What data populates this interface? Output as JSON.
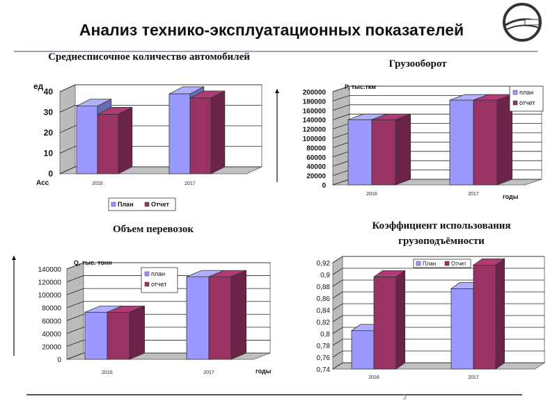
{
  "slide": {
    "title": "Анализ технико-эксплуатационных показателей",
    "page_number": "3"
  },
  "colors": {
    "plan": "#9999ff",
    "report": "#993366"
  },
  "chart_data": [
    {
      "type": "bar",
      "title": "Среднесписочное количество автомобилей",
      "ylabel": "ед",
      "xlabel": "",
      "corner_label": "Асс",
      "categories": [
        "2016",
        "2017"
      ],
      "ylim": [
        0,
        40
      ],
      "yticks": [
        "0",
        "10",
        "20",
        "30",
        "40"
      ],
      "series": [
        {
          "name": "План",
          "values": [
            33,
            39
          ]
        },
        {
          "name": "Отчет",
          "values": [
            29,
            37
          ]
        }
      ],
      "legend_position": "bottom"
    },
    {
      "type": "bar",
      "title": "Грузооборот",
      "ylabel": "Р, тыс.ткм",
      "xlabel": "годы",
      "categories": [
        "2016",
        "2017"
      ],
      "ylim": [
        0,
        200000
      ],
      "yticks": [
        "0",
        "20000",
        "40000",
        "60000",
        "80000",
        "100000",
        "120000",
        "140000",
        "160000",
        "180000",
        "200000"
      ],
      "series": [
        {
          "name": "план",
          "values": [
            140000,
            182000
          ]
        },
        {
          "name": "отчет",
          "values": [
            140000,
            182000
          ]
        }
      ],
      "legend_position": "top-right"
    },
    {
      "type": "bar",
      "title": "Объем перевозок",
      "ylabel": "Q, тыс. тонн",
      "xlabel": "годы",
      "categories": [
        "2016",
        "2017"
      ],
      "ylim": [
        0,
        140000
      ],
      "yticks": [
        "0",
        "20000",
        "40000",
        "60000",
        "80000",
        "100000",
        "120000",
        "140000"
      ],
      "series": [
        {
          "name": "план",
          "values": [
            73000,
            128000
          ]
        },
        {
          "name": "отчет",
          "values": [
            73000,
            128000
          ]
        }
      ],
      "legend_position": "top-right"
    },
    {
      "type": "bar",
      "title": "Коэффициент использования грузоподъёмности",
      "ylabel": "",
      "xlabel": "",
      "categories": [
        "2016",
        "2017"
      ],
      "ylim": [
        0.74,
        0.92
      ],
      "yticks": [
        "0,74",
        "0,76",
        "0,78",
        "0,8",
        "0,82",
        "0,84",
        "0,86",
        "0,88",
        "0,9",
        "0,92"
      ],
      "series": [
        {
          "name": "План",
          "values": [
            0.805,
            0.876
          ]
        },
        {
          "name": "Отчет",
          "values": [
            0.896,
            0.916
          ]
        }
      ],
      "legend_position": "top-right"
    }
  ]
}
